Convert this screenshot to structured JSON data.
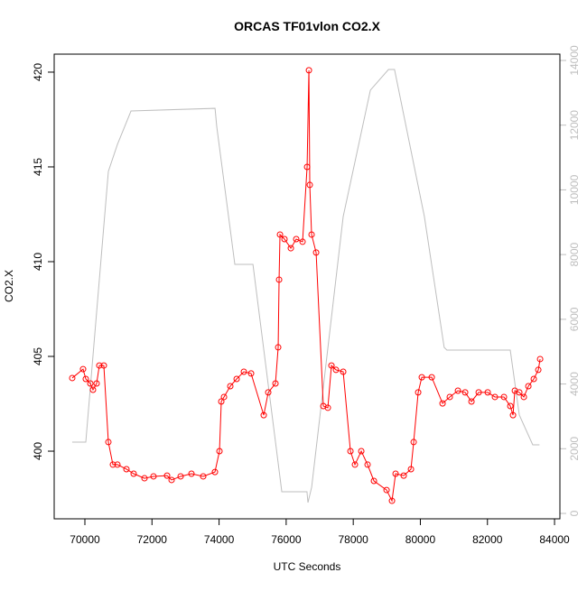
{
  "chart_data": {
    "type": "line",
    "title": "ORCAS TF01vlon CO2.X",
    "xlabel": "UTC Seconds",
    "ylabel": "CO2.X",
    "xlim": [
      69085,
      84160
    ],
    "xticks": [
      70000,
      72000,
      74000,
      76000,
      78000,
      80000,
      82000,
      84000
    ],
    "ylim": [
      396.43,
      420.95
    ],
    "yticks": [
      400,
      405,
      410,
      415,
      420
    ],
    "y2lim": [
      -167,
      14195
    ],
    "y2ticks": [
      0,
      2000,
      4000,
      6000,
      8000,
      10000,
      12000,
      14000
    ],
    "series": [
      {
        "color": "#bebebe",
        "axis": "y2",
        "marker": "none",
        "x": [
          69622,
          70027,
          70700,
          70970,
          71375,
          73880,
          73930,
          74470,
          75010,
          75870,
          76620,
          76650,
          76760,
          77700,
          78510,
          79050,
          79230,
          80120,
          80710,
          80790,
          82680,
          82950,
          83350,
          83550
        ],
        "values": [
          2203,
          2203,
          10570,
          11405,
          12437,
          12520,
          11963,
          7697,
          7697,
          670,
          670,
          335,
          810,
          9175,
          13080,
          13720,
          13720,
          9175,
          5131,
          5047,
          5047,
          3040,
          2120,
          2120
        ]
      },
      {
        "color": "#ff0000",
        "axis": "y",
        "marker": "circle",
        "x": [
          69623,
          69946,
          70027,
          70162,
          70242,
          70350,
          70431,
          70565,
          70700,
          70835,
          70970,
          71239,
          71454,
          71777,
          72046,
          72450,
          72585,
          72854,
          73177,
          73527,
          73877,
          74012,
          74066,
          74147,
          74335,
          74524,
          74739,
          74954,
          75331,
          75466,
          75681,
          75762,
          75789,
          75816,
          75950,
          76139,
          76300,
          76489,
          76624,
          76678,
          76704,
          76758,
          76893,
          77108,
          77243,
          77350,
          77485,
          77700,
          77916,
          78050,
          78239,
          78427,
          78616,
          78993,
          79154,
          79262,
          79504,
          79720,
          79801,
          79935,
          80043,
          80339,
          80662,
          80877,
          81120,
          81335,
          81524,
          81739,
          82008,
          82223,
          82492,
          82681,
          82762,
          82816,
          82950,
          83085,
          83220,
          83381,
          83516,
          83570
        ],
        "values": [
          403.86,
          404.33,
          403.81,
          403.57,
          403.24,
          403.57,
          404.52,
          404.52,
          400.48,
          399.29,
          399.29,
          399.05,
          398.81,
          398.57,
          398.67,
          398.71,
          398.48,
          398.67,
          398.81,
          398.67,
          398.9,
          400.0,
          402.62,
          402.86,
          403.43,
          403.81,
          404.19,
          404.1,
          401.9,
          403.1,
          403.57,
          405.48,
          409.05,
          411.43,
          411.19,
          410.71,
          411.19,
          411.05,
          415.0,
          420.1,
          414.05,
          411.43,
          410.48,
          402.38,
          402.29,
          404.52,
          404.29,
          404.19,
          400.0,
          399.29,
          400.0,
          399.29,
          398.43,
          397.95,
          397.38,
          398.81,
          398.71,
          399.05,
          400.48,
          403.1,
          403.9,
          403.9,
          402.52,
          402.86,
          403.19,
          403.1,
          402.62,
          403.1,
          403.1,
          402.86,
          402.86,
          402.38,
          401.9,
          403.19,
          403.1,
          402.86,
          403.43,
          403.81,
          404.29,
          404.86
        ]
      }
    ]
  }
}
